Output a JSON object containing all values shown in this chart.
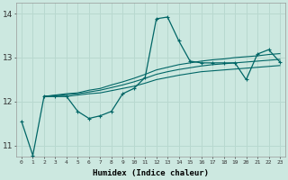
{
  "xlabel": "Humidex (Indice chaleur)",
  "background_color": "#cce8e0",
  "grid_color": "#b8d8cf",
  "line_color": "#006666",
  "xlim": [
    -0.5,
    23.5
  ],
  "ylim": [
    10.75,
    14.25
  ],
  "yticks": [
    11,
    12,
    13,
    14
  ],
  "xticks": [
    0,
    1,
    2,
    3,
    4,
    5,
    6,
    7,
    8,
    9,
    10,
    11,
    12,
    13,
    14,
    15,
    16,
    17,
    18,
    19,
    20,
    21,
    22,
    23
  ],
  "main_line": {
    "x": [
      0,
      1,
      2,
      3,
      4,
      5,
      6,
      7,
      8,
      9,
      10,
      11,
      12,
      13,
      14,
      15,
      16,
      17,
      18,
      19,
      20,
      21,
      22,
      23
    ],
    "y": [
      11.55,
      10.78,
      12.12,
      12.12,
      12.12,
      11.78,
      11.62,
      11.68,
      11.78,
      12.18,
      12.3,
      12.55,
      13.88,
      13.92,
      13.38,
      12.92,
      12.88,
      12.88,
      12.88,
      12.88,
      12.5,
      13.08,
      13.18,
      12.9
    ]
  },
  "smooth_line1": {
    "x": [
      2,
      3,
      4,
      5,
      6,
      7,
      8,
      9,
      10,
      11,
      12,
      13,
      14,
      15,
      16,
      17,
      18,
      19,
      20,
      21,
      22,
      23
    ],
    "y": [
      12.12,
      12.12,
      12.12,
      12.15,
      12.18,
      12.2,
      12.25,
      12.3,
      12.35,
      12.42,
      12.5,
      12.55,
      12.6,
      12.64,
      12.68,
      12.7,
      12.72,
      12.74,
      12.76,
      12.78,
      12.8,
      12.82
    ]
  },
  "smooth_line2": {
    "x": [
      2,
      3,
      4,
      5,
      6,
      7,
      8,
      9,
      10,
      11,
      12,
      13,
      14,
      15,
      16,
      17,
      18,
      19,
      20,
      21,
      22,
      23
    ],
    "y": [
      12.12,
      12.14,
      12.16,
      12.18,
      12.22,
      12.26,
      12.32,
      12.38,
      12.45,
      12.53,
      12.62,
      12.68,
      12.73,
      12.77,
      12.81,
      12.84,
      12.86,
      12.88,
      12.9,
      12.92,
      12.94,
      12.96
    ]
  },
  "smooth_line3": {
    "x": [
      2,
      3,
      4,
      5,
      6,
      7,
      8,
      9,
      10,
      11,
      12,
      13,
      14,
      15,
      16,
      17,
      18,
      19,
      20,
      21,
      22,
      23
    ],
    "y": [
      12.12,
      12.15,
      12.18,
      12.2,
      12.26,
      12.3,
      12.38,
      12.45,
      12.53,
      12.62,
      12.72,
      12.78,
      12.84,
      12.88,
      12.92,
      12.95,
      12.97,
      13.0,
      13.02,
      13.04,
      13.07,
      13.09
    ]
  }
}
